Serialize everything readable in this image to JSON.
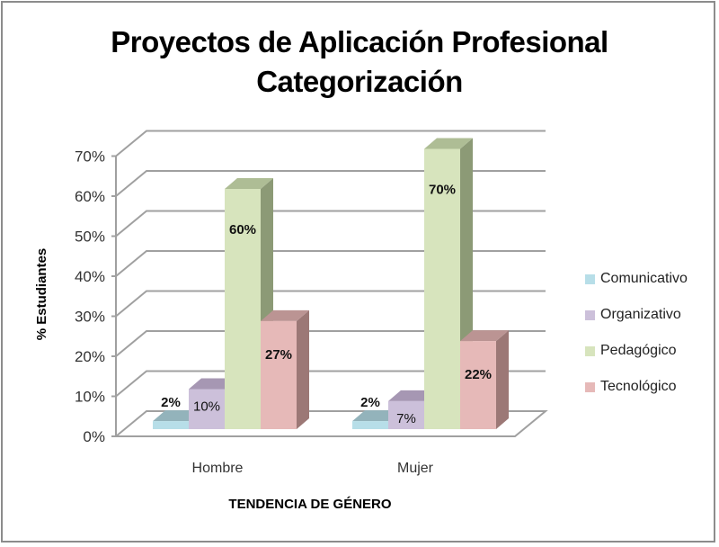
{
  "chart": {
    "title_line1": "Proyectos de Aplicación Profesional",
    "title_line2": "Categorización",
    "xlabel": "TENDENCIA DE GÉNERO",
    "ylabel": "% Estudiantes",
    "categories": [
      "Hombre",
      "Mujer"
    ],
    "legend": [
      {
        "label": "Comunicativo",
        "color": "#b7dee8"
      },
      {
        "label": "Organizativo",
        "color": "#ccc0da"
      },
      {
        "label": "Pedagógico",
        "color": "#d7e4bd"
      },
      {
        "label": "Tecnológico",
        "color": "#e6b9b8"
      }
    ],
    "yticks": [
      "0%",
      "10%",
      "20%",
      "30%",
      "40%",
      "50%",
      "60%",
      "70%"
    ]
  },
  "chart_data": {
    "type": "bar",
    "subtype": "3d-clustered-column",
    "title": "Proyectos de Aplicación Profesional Categorización",
    "xlabel": "TENDENCIA DE GÉNERO",
    "ylabel": "% Estudiantes",
    "categories": [
      "Hombre",
      "Mujer"
    ],
    "series": [
      {
        "name": "Comunicativo",
        "values": [
          2,
          2
        ],
        "labels": [
          "2%",
          "2%"
        ],
        "color": "#b7dee8",
        "top": "#93b3bb",
        "side": "#7f9ea6"
      },
      {
        "name": "Organizativo",
        "values": [
          10,
          7
        ],
        "labels": [
          "10%",
          "7%"
        ],
        "color": "#ccc0da",
        "top": "#a697b3",
        "side": "#8f839c"
      },
      {
        "name": "Pedagógico",
        "values": [
          60,
          70
        ],
        "labels": [
          "60%",
          "70%"
        ],
        "color": "#d7e4bd",
        "top": "#aebd95",
        "side": "#8c9a76"
      },
      {
        "name": "Tecnológico",
        "values": [
          27,
          22
        ],
        "labels": [
          "27%",
          "22%"
        ],
        "color": "#e6b9b8",
        "top": "#bb9493",
        "side": "#9c7876"
      }
    ],
    "ylim": [
      0,
      70
    ],
    "ytick_step": 10,
    "ytick_format": "percent",
    "grid": true,
    "legend_position": "right"
  }
}
